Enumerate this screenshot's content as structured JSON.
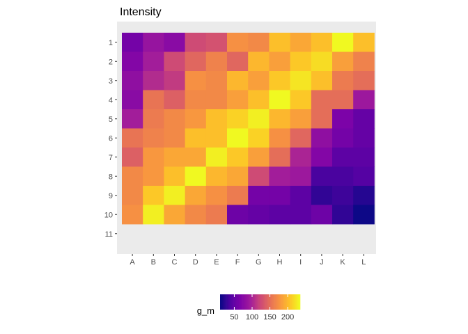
{
  "chart_data": {
    "type": "heatmap",
    "title": "Intensity",
    "xlabel": "",
    "ylabel": "",
    "x_categories": [
      "A",
      "B",
      "C",
      "D",
      "E",
      "F",
      "G",
      "H",
      "I",
      "J",
      "K",
      "L"
    ],
    "y_tick_labels": [
      "1",
      "2",
      "3",
      "4",
      "5",
      "6",
      "7",
      "8",
      "9",
      "10",
      "11"
    ],
    "y_categories": [
      "1",
      "2",
      "3",
      "4",
      "5",
      "6",
      "7",
      "8",
      "9",
      "10"
    ],
    "values": [
      [
        60,
        85,
        75,
        125,
        130,
        175,
        170,
        205,
        190,
        205,
        235,
        205
      ],
      [
        70,
        95,
        125,
        145,
        165,
        145,
        200,
        185,
        210,
        220,
        185,
        165
      ],
      [
        80,
        105,
        115,
        175,
        170,
        200,
        185,
        210,
        225,
        205,
        160,
        150
      ],
      [
        75,
        155,
        140,
        170,
        170,
        185,
        205,
        235,
        210,
        150,
        150,
        90
      ],
      [
        95,
        160,
        170,
        180,
        205,
        215,
        230,
        200,
        185,
        150,
        65,
        50
      ],
      [
        155,
        165,
        170,
        205,
        205,
        235,
        215,
        175,
        145,
        80,
        60,
        50
      ],
      [
        140,
        180,
        190,
        190,
        230,
        210,
        185,
        150,
        100,
        70,
        45,
        45
      ],
      [
        170,
        180,
        205,
        235,
        200,
        190,
        125,
        95,
        90,
        35,
        35,
        40
      ],
      [
        170,
        210,
        230,
        190,
        175,
        160,
        60,
        60,
        45,
        25,
        30,
        20
      ],
      [
        175,
        230,
        190,
        170,
        160,
        55,
        50,
        45,
        45,
        55,
        25,
        10
      ]
    ],
    "colorscale": "plasma",
    "colorbar": {
      "title": "g_m",
      "ticks": [
        50,
        100,
        150,
        200
      ],
      "range": [
        10,
        235
      ]
    },
    "panel_background": "#ebebeb",
    "legend_position": "bottom"
  }
}
